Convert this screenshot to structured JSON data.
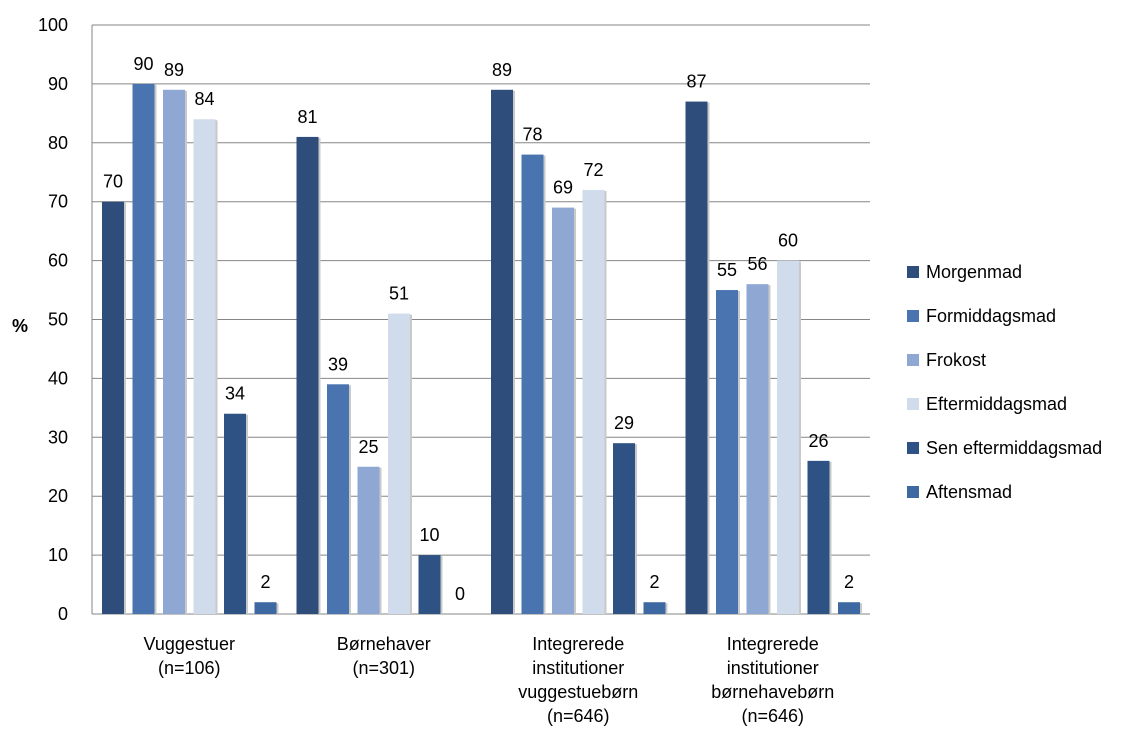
{
  "chart_data": {
    "type": "bar",
    "ylabel": "%",
    "ylim": [
      0,
      100
    ],
    "yticks": [
      0,
      10,
      20,
      30,
      40,
      50,
      60,
      70,
      80,
      90,
      100
    ],
    "grid": true,
    "legend_position": "right",
    "categories": [
      [
        "Vuggestuer",
        "(n=106)"
      ],
      [
        "Børnehaver",
        "(n=301)"
      ],
      [
        "Integrerede",
        "institutioner",
        "vuggestuebørn",
        "(n=646)"
      ],
      [
        "Integrerede",
        "institutioner",
        "børnehavebørn",
        "(n=646)"
      ]
    ],
    "series": [
      {
        "name": "Morgenmad",
        "color": "#2f4d7a",
        "values": [
          70,
          81,
          89,
          87
        ],
        "labels": [
          "70",
          "81",
          "89",
          "87"
        ]
      },
      {
        "name": "Formiddagsmad",
        "color": "#4a74b0",
        "values": [
          90,
          39,
          78,
          55
        ],
        "labels": [
          "90",
          "39",
          "78",
          "55"
        ]
      },
      {
        "name": "Frokost",
        "color": "#8ea8d3",
        "values": [
          89,
          25,
          69,
          56
        ],
        "labels": [
          "89",
          "25",
          "69",
          "56"
        ]
      },
      {
        "name": "Eftermiddagsmad",
        "color": "#d0dbec",
        "values": [
          84,
          51,
          72,
          60
        ],
        "labels": [
          "84",
          "51",
          "72",
          "60"
        ]
      },
      {
        "name": "Sen eftermiddagsmad",
        "color": "#2e5283",
        "values": [
          34,
          10,
          29,
          26
        ],
        "labels": [
          "34",
          "10",
          "29",
          "26"
        ]
      },
      {
        "name": "Aftensmad",
        "color": "#3d68a2",
        "values": [
          2,
          0,
          2,
          2
        ],
        "labels": [
          "2",
          "0",
          "2",
          "2"
        ]
      }
    ]
  }
}
